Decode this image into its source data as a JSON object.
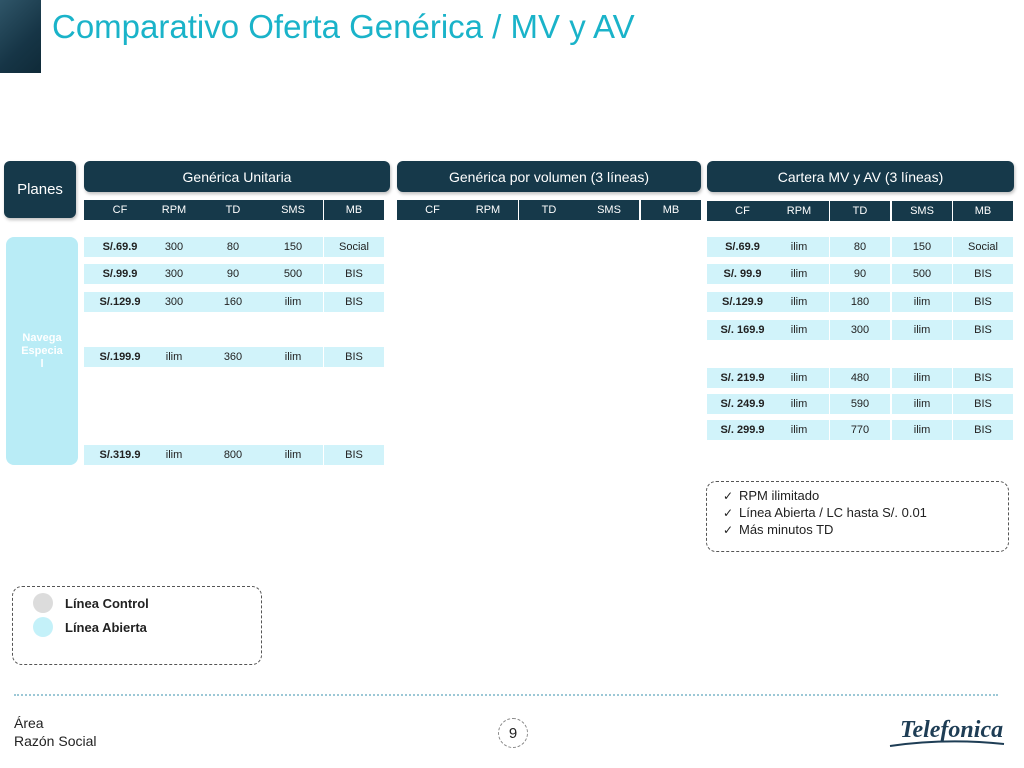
{
  "title": "Comparativo Oferta Genérica / MV y AV",
  "planes_label": "Planes",
  "navega_label": "Navega Especial",
  "groups": [
    {
      "title": "Genérica Unitaria",
      "columns": [
        "CF",
        "RPM",
        "TD",
        "SMS",
        "MB"
      ],
      "rows": [
        [
          "S/.69.9",
          "300",
          "80",
          "150",
          "Social"
        ],
        [
          "S/.99.9",
          "300",
          "90",
          "500",
          "BIS"
        ],
        [
          "S/.129.9",
          "300",
          "160",
          "ilim",
          "BIS"
        ],
        [
          "S/.199.9",
          "ilim",
          "360",
          "ilim",
          "BIS"
        ],
        [
          "S/.319.9",
          "ilim",
          "800",
          "ilim",
          "BIS"
        ]
      ]
    },
    {
      "title": "Genérica por volumen (3 líneas)",
      "columns": [
        "CF",
        "RPM",
        "TD",
        "SMS",
        "MB"
      ],
      "rows": []
    },
    {
      "title": "Cartera MV y AV (3 líneas)",
      "columns": [
        "CF",
        "RPM",
        "TD",
        "SMS",
        "MB"
      ],
      "rows": [
        [
          "S/.69.9",
          "ilim",
          "80",
          "150",
          "Social"
        ],
        [
          "S/. 99.9",
          "ilim",
          "90",
          "500",
          "BIS"
        ],
        [
          "S/.129.9",
          "ilim",
          "180",
          "ilim",
          "BIS"
        ],
        [
          "S/. 169.9",
          "ilim",
          "300",
          "ilim",
          "BIS"
        ],
        [
          "S/. 219.9",
          "ilim",
          "480",
          "ilim",
          "BIS"
        ],
        [
          "S/. 249.9",
          "ilim",
          "590",
          "ilim",
          "BIS"
        ],
        [
          "S/. 299.9",
          "ilim",
          "770",
          "ilim",
          "BIS"
        ]
      ]
    }
  ],
  "benefits": [
    "RPM ilimitado",
    "Línea Abierta / LC hasta S/. 0.01",
    "Más minutos TD"
  ],
  "legend": [
    {
      "label": "Línea Control",
      "color": "#dcdcdc"
    },
    {
      "label": "Línea Abierta",
      "color": "#c4f1f9"
    }
  ],
  "footer": {
    "area": "Área",
    "razon": "Razón Social"
  },
  "page_number": "9",
  "logo_text": "Telefonica",
  "colors": {
    "title": "#1ab3c9",
    "header": "#16394a",
    "cell": "#d1f3fa",
    "navega": "#b9ecf6"
  }
}
